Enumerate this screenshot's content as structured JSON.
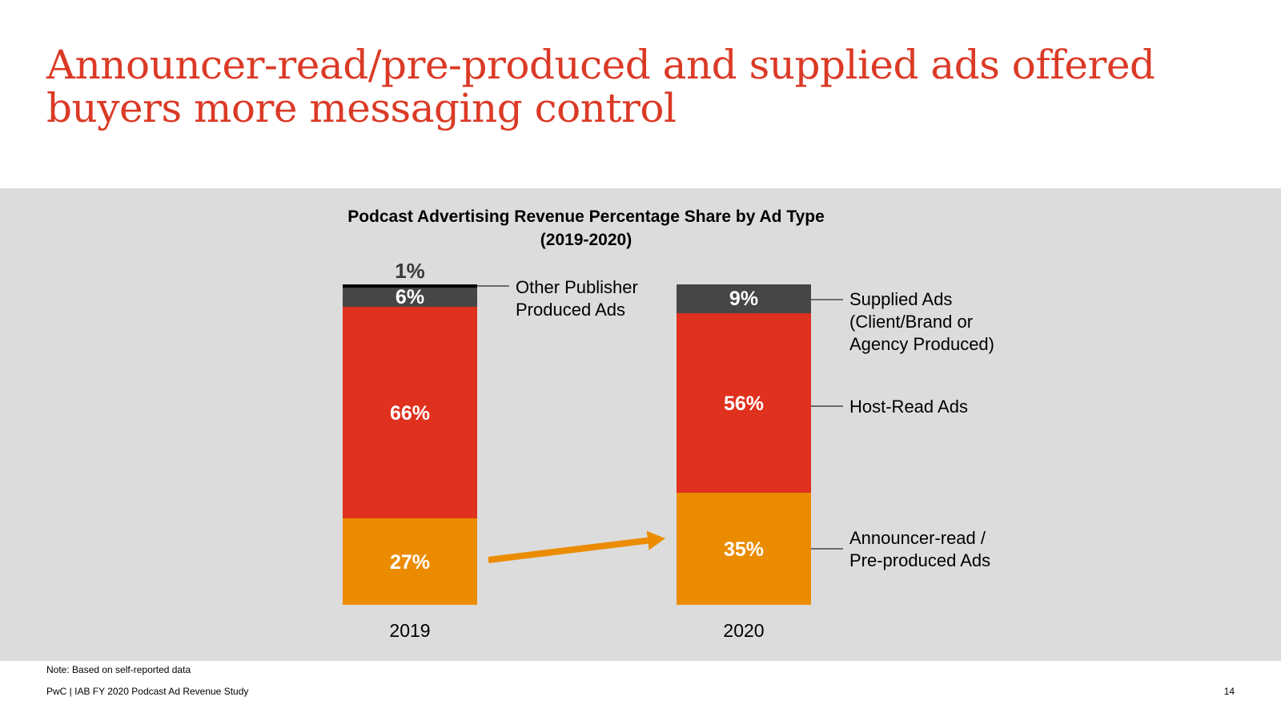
{
  "slide": {
    "title": "Announcer-read/pre-produced and supplied ads offered buyers more messaging control",
    "note": "Note: Based on self-reported data",
    "footer": "PwC  |  IAB FY 2020 Podcast Ad Revenue Study",
    "page_number": "14"
  },
  "chart_data": {
    "type": "bar",
    "stacked": true,
    "title": "Podcast Advertising Revenue Percentage Share by Ad Type",
    "subtitle": "(2019-2020)",
    "xlabel": "",
    "ylabel": "",
    "categories": [
      "2019",
      "2020"
    ],
    "series": [
      {
        "name": "Announcer-read / Pre-produced Ads",
        "values": [
          27,
          35
        ],
        "color": "#eb8c00",
        "labels": [
          "27%",
          "35%"
        ]
      },
      {
        "name": "Host-Read Ads",
        "values": [
          66,
          56
        ],
        "color": "#e0301e",
        "labels": [
          "66%",
          "56%"
        ]
      },
      {
        "name": "Supplied Ads (Client/Brand or Agency Produced)",
        "values": [
          6,
          9
        ],
        "color": "#464646",
        "labels": [
          "6%",
          "9%"
        ]
      },
      {
        "name": "Other Publisher Produced Ads",
        "values": [
          1,
          0
        ],
        "color": "#000000",
        "labels": [
          "1%",
          ""
        ]
      }
    ],
    "legend_labels": [
      {
        "text": [
          "Other Publisher",
          "Produced Ads"
        ],
        "attached_to": "2019",
        "series": "Other Publisher Produced Ads"
      },
      {
        "text": [
          "Supplied Ads",
          "(Client/Brand or",
          "Agency Produced)"
        ],
        "attached_to": "2020",
        "series": "Supplied Ads (Client/Brand or Agency Produced)"
      },
      {
        "text": [
          "Host-Read Ads"
        ],
        "attached_to": "2020",
        "series": "Host-Read Ads"
      },
      {
        "text": [
          "Announcer-read /",
          "Pre-produced Ads"
        ],
        "attached_to": "2020",
        "series": "Announcer-read / Pre-produced Ads"
      }
    ],
    "annotation": "arrow from 2019 Announcer-read share to 2020 Announcer-read share",
    "ylim": [
      0,
      100
    ],
    "grid": false,
    "legend": "right"
  }
}
